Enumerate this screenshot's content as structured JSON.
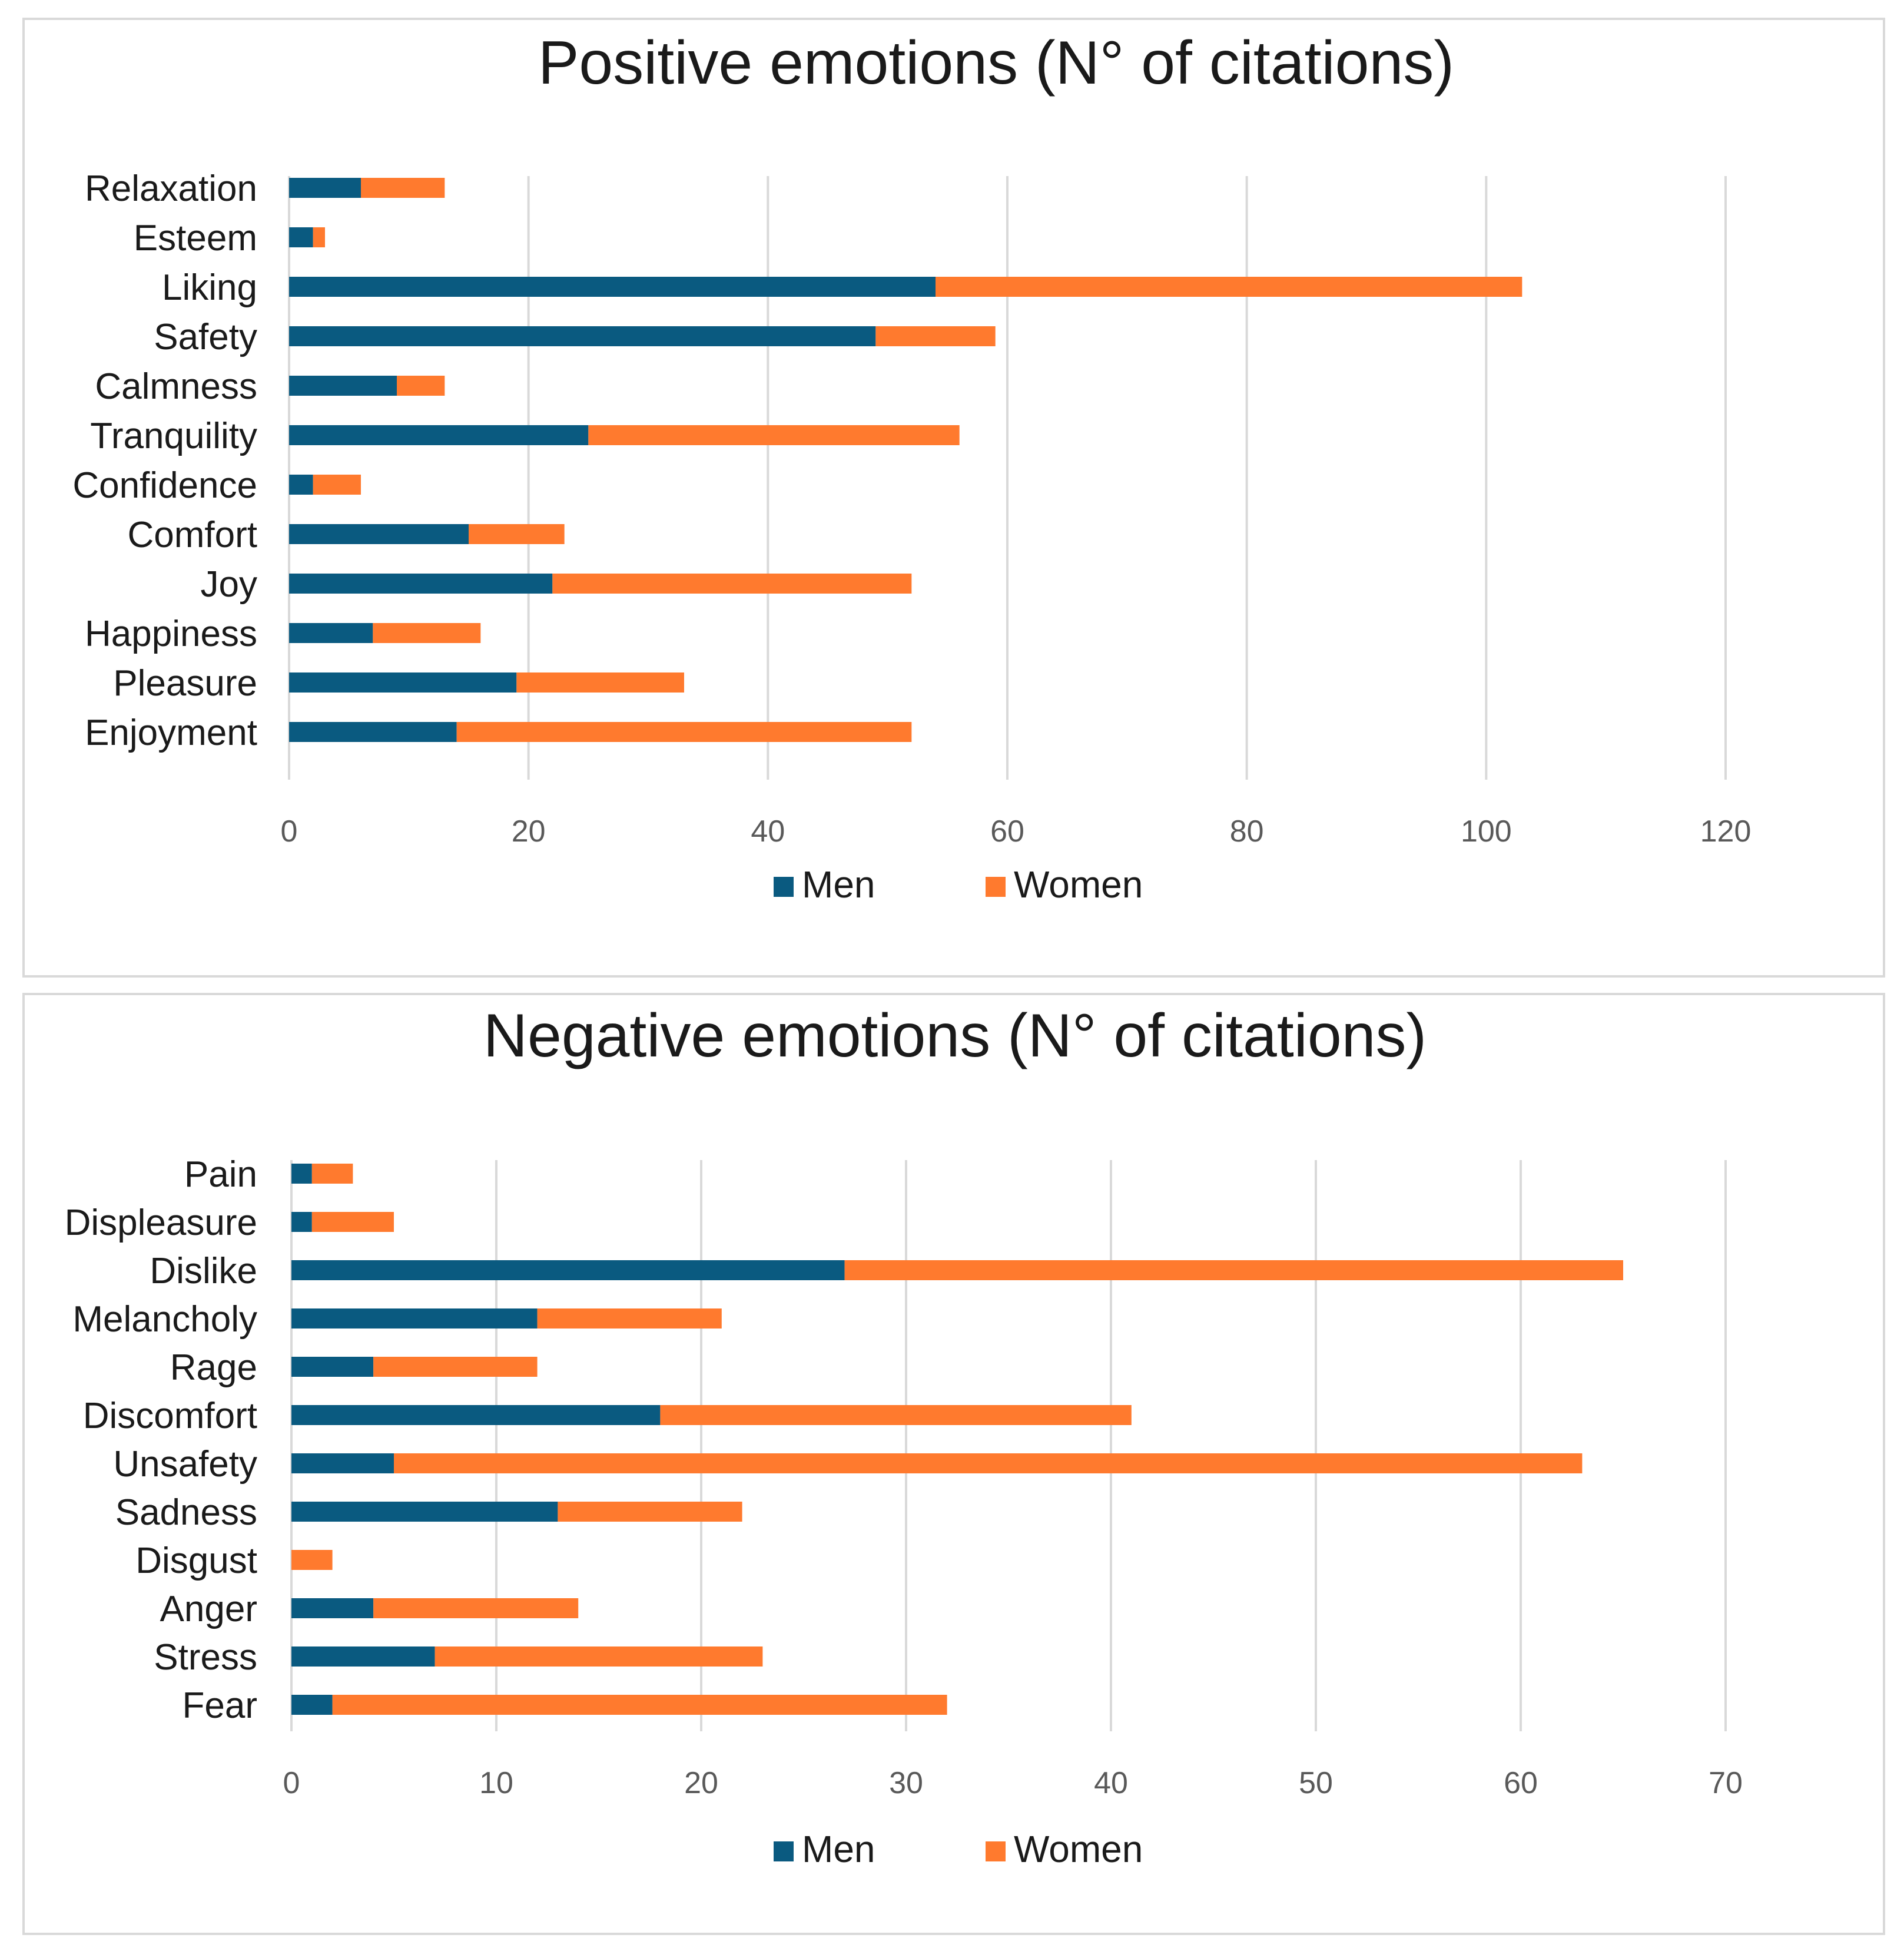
{
  "colors": {
    "men": "#0a5a80",
    "women": "#ff7a2e"
  },
  "chart_data": [
    {
      "type": "bar",
      "orientation": "horizontal",
      "stacked": true,
      "title": "Positive emotions (N° of citations)",
      "categories": [
        "Relaxation",
        "Esteem",
        "Liking",
        "Safety",
        "Calmness",
        "Tranquility",
        "Confidence",
        "Comfort",
        "Joy",
        "Happiness",
        "Pleasure",
        "Enjoyment"
      ],
      "series": [
        {
          "name": "Men",
          "values": [
            6,
            2,
            54,
            49,
            9,
            25,
            2,
            15,
            22,
            7,
            19,
            14
          ]
        },
        {
          "name": "Women",
          "values": [
            7,
            1,
            49,
            10,
            4,
            31,
            4,
            8,
            30,
            9,
            14,
            38
          ]
        }
      ],
      "xlim": [
        0,
        120
      ],
      "xticks": [
        "0",
        "20",
        "40",
        "60",
        "80",
        "100",
        "120"
      ],
      "grid": true,
      "legend": "bottom"
    },
    {
      "type": "bar",
      "orientation": "horizontal",
      "stacked": true,
      "title": "Negative emotions (N° of citations)",
      "categories": [
        "Pain",
        "Displeasure",
        "Dislike",
        "Melancholy",
        "Rage",
        "Discomfort",
        "Unsafety",
        "Sadness",
        "Disgust",
        "Anger",
        "Stress",
        "Fear"
      ],
      "series": [
        {
          "name": "Men",
          "values": [
            1,
            1,
            27,
            12,
            4,
            18,
            5,
            13,
            0,
            4,
            7,
            2
          ]
        },
        {
          "name": "Women",
          "values": [
            2,
            4,
            38,
            9,
            8,
            23,
            58,
            9,
            2,
            10,
            16,
            30
          ]
        }
      ],
      "xlim": [
        0,
        70
      ],
      "xticks": [
        "0",
        "10",
        "20",
        "30",
        "40",
        "50",
        "60",
        "70"
      ],
      "grid": true,
      "legend": "bottom"
    }
  ]
}
